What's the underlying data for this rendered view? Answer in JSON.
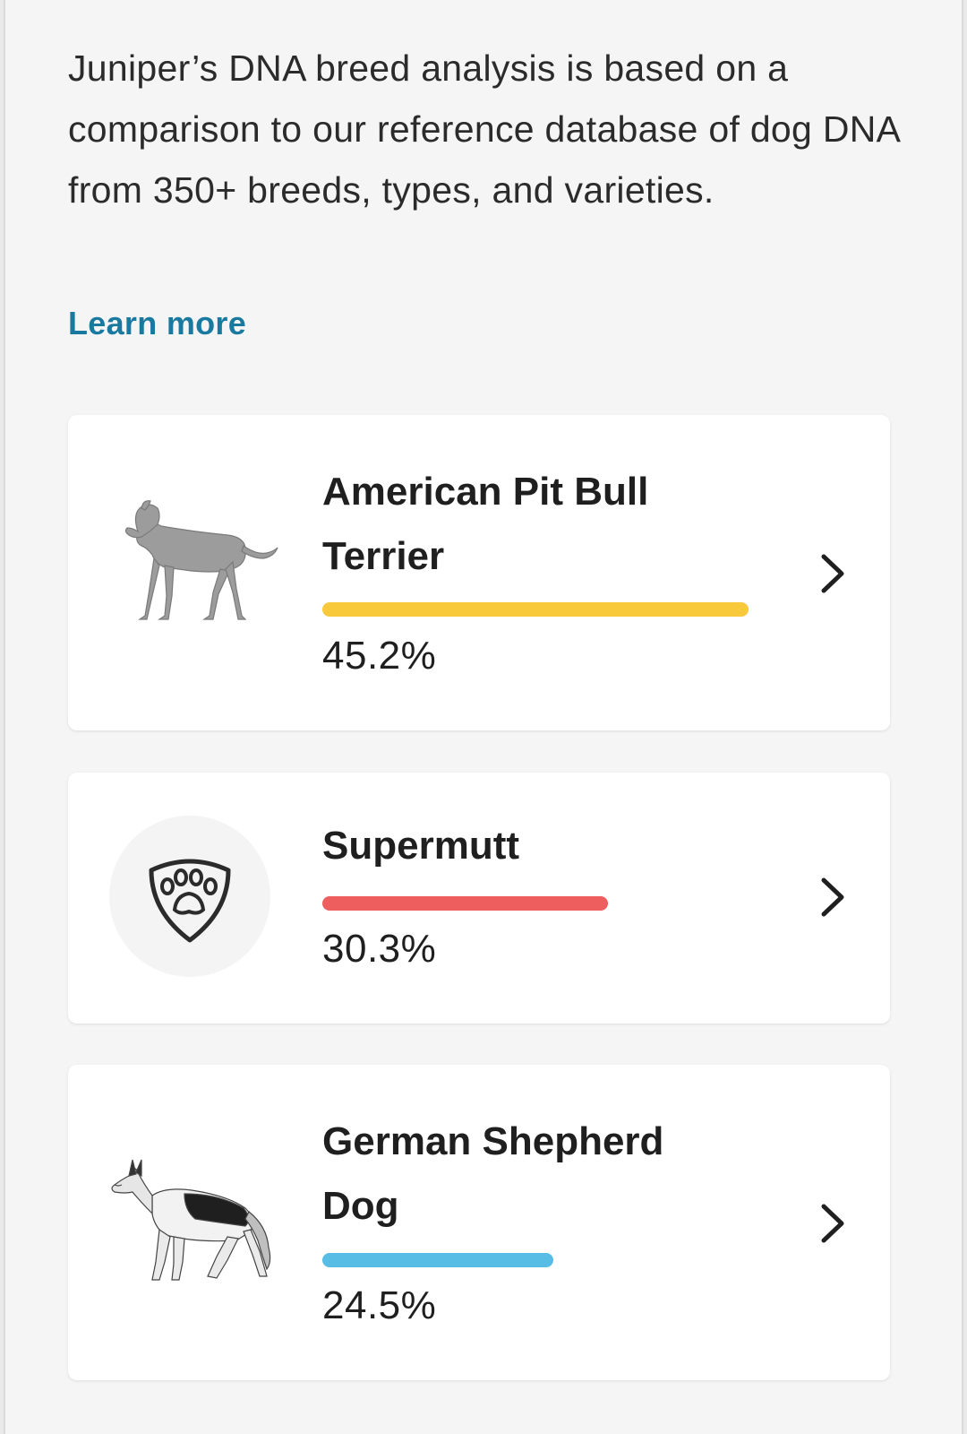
{
  "intro": {
    "text": "Juniper’s DNA breed analysis is based on a comparison to our reference database of dog DNA from 350+ breeds, types, and varieties.",
    "learn_more": "Learn more",
    "link_color": "#19799f"
  },
  "breeds": [
    {
      "name": "American Pit Bull Terrier",
      "percent_label": "45.2%",
      "percent": 45.2,
      "bar_color": "#f9c93c",
      "icon": "pit-bull-image"
    },
    {
      "name": "Supermutt",
      "percent_label": "30.3%",
      "percent": 30.3,
      "bar_color": "#ef5e5e",
      "icon": "paw-shield-icon"
    },
    {
      "name": "German Shepherd Dog",
      "percent_label": "24.5%",
      "percent": 24.5,
      "bar_color": "#58bde4",
      "icon": "german-shepherd-image"
    }
  ]
}
